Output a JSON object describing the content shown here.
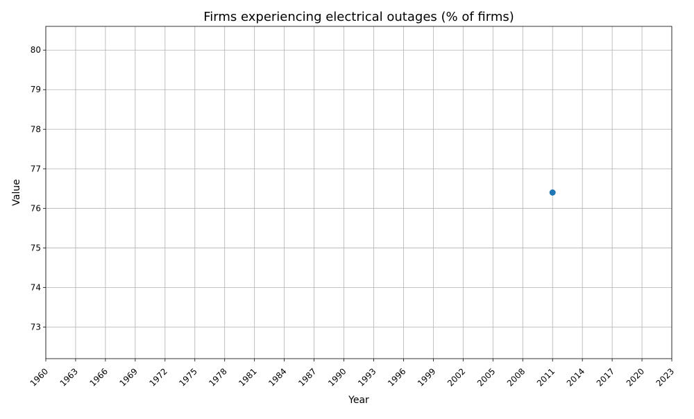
{
  "chart_data": {
    "type": "line",
    "title": "Firms experiencing electrical outages (% of firms)",
    "xlabel": "Year",
    "ylabel": "Value",
    "xlim": [
      1960,
      2023
    ],
    "ylim": [
      72.2,
      80.6
    ],
    "x_ticks": [
      "1960",
      "1963",
      "1966",
      "1969",
      "1972",
      "1975",
      "1978",
      "1981",
      "1984",
      "1987",
      "1990",
      "1993",
      "1996",
      "1999",
      "2002",
      "2005",
      "2008",
      "2011",
      "2014",
      "2017",
      "2020",
      "2023"
    ],
    "y_ticks": [
      "73",
      "74",
      "75",
      "76",
      "77",
      "78",
      "79",
      "80"
    ],
    "grid": true,
    "series": [
      {
        "x": [
          2011
        ],
        "y": [
          76.4
        ],
        "color": "#1f77b4",
        "marker": "circle"
      }
    ]
  }
}
